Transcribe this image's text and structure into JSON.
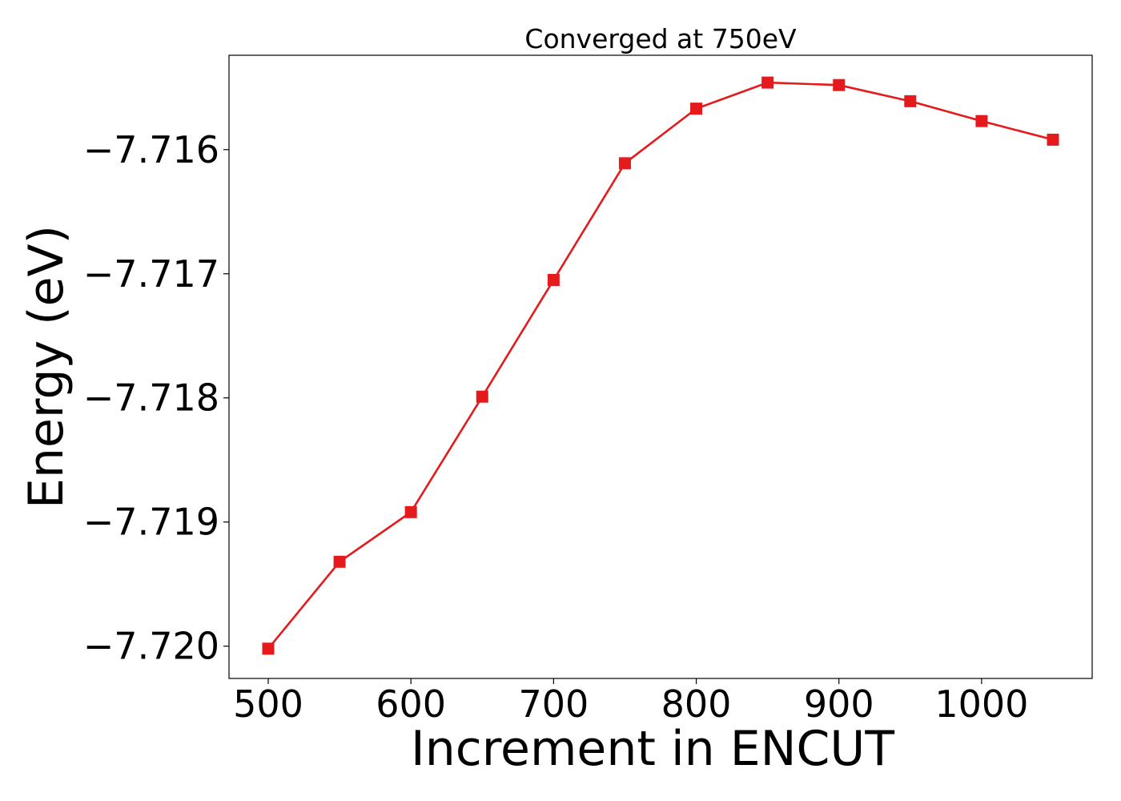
{
  "chart_data": {
    "type": "line",
    "title": "Converged at 750eV",
    "xlabel": "Increment in ENCUT",
    "ylabel": "Energy (eV)",
    "x": [
      500,
      550,
      600,
      650,
      700,
      750,
      800,
      850,
      900,
      950,
      1000,
      1050
    ],
    "series": [
      {
        "values": [
          -7.72002,
          -7.71932,
          -7.71892,
          -7.71799,
          -7.71705,
          -7.71611,
          -7.71567,
          -7.71546,
          -7.71548,
          -7.71561,
          -7.71577,
          -7.71592
        ],
        "color": "#e41a1c",
        "marker": "square"
      }
    ],
    "xticks": [
      500,
      600,
      700,
      800,
      900,
      1000
    ],
    "xtick_labels": [
      "500",
      "600",
      "700",
      "800",
      "900",
      "1000"
    ],
    "yticks": [
      -7.72,
      -7.719,
      -7.718,
      -7.717,
      -7.716
    ],
    "ytick_labels": [
      "−7.720",
      "−7.719",
      "−7.718",
      "−7.717",
      "−7.716"
    ],
    "xlim": [
      472.5,
      1077.5
    ],
    "ylim": [
      -7.72026,
      -7.71524
    ],
    "grid": false,
    "legend": "none"
  }
}
